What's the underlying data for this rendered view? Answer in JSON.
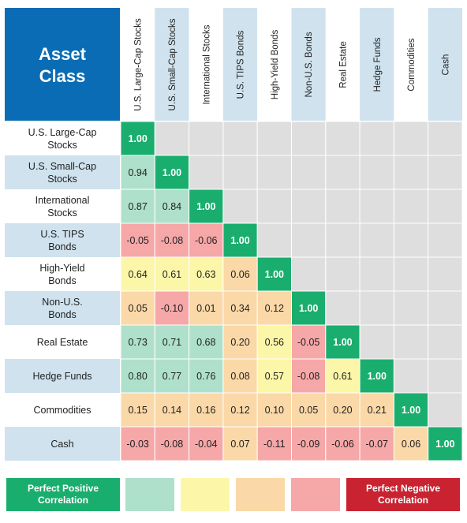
{
  "header": {
    "title_line1": "Asset",
    "title_line2": "Class"
  },
  "colors": {
    "header_blue": "#0a6cb5",
    "label_blue": "#cfe2ee",
    "diagonal": "#1aae6e",
    "empty": "#dedede",
    "bin_very_high": "#aee0cc",
    "bin_high": "#fcf6a9",
    "bin_low": "#fbd8a7",
    "bin_negative": "#f6a7a8",
    "perfect_negative": "#c92331"
  },
  "assets": [
    {
      "col": "U.S. Large-Cap Stocks",
      "row": [
        "U.S. Large-Cap",
        "Stocks"
      ]
    },
    {
      "col": "U.S. Small-Cap Stocks",
      "row": [
        "U.S. Small-Cap",
        "Stocks"
      ]
    },
    {
      "col": "International Stocks",
      "row": [
        "International",
        "Stocks"
      ]
    },
    {
      "col": "U.S. TIPS Bonds",
      "row": [
        "U.S. TIPS",
        "Bonds"
      ]
    },
    {
      "col": "High-Yield Bonds",
      "row": [
        "High-Yield",
        "Bonds"
      ]
    },
    {
      "col": "Non-U.S. Bonds",
      "row": [
        "Non-U.S.",
        "Bonds"
      ]
    },
    {
      "col": "Real Estate",
      "row": [
        "Real Estate"
      ]
    },
    {
      "col": "Hedge Funds",
      "row": [
        "Hedge Funds"
      ]
    },
    {
      "col": "Commodities",
      "row": [
        "Commodities"
      ]
    },
    {
      "col": "Cash",
      "row": [
        "Cash"
      ]
    }
  ],
  "chart_data": {
    "type": "heatmap",
    "rows": [
      "U.S. Large-Cap Stocks",
      "U.S. Small-Cap Stocks",
      "International Stocks",
      "U.S. TIPS Bonds",
      "High-Yield Bonds",
      "Non-U.S. Bonds",
      "Real Estate",
      "Hedge Funds",
      "Commodities",
      "Cash"
    ],
    "columns": [
      "U.S. Large-Cap Stocks",
      "U.S. Small-Cap Stocks",
      "International Stocks",
      "U.S. TIPS Bonds",
      "High-Yield Bonds",
      "Non-U.S. Bonds",
      "Real Estate",
      "Hedge Funds",
      "Commodities",
      "Cash"
    ],
    "values": [
      [
        "1.00"
      ],
      [
        "0.94",
        "1.00"
      ],
      [
        "0.87",
        "0.84",
        "1.00"
      ],
      [
        "-0.05",
        "-0.08",
        "-0.06",
        "1.00"
      ],
      [
        "0.64",
        "0.61",
        "0.63",
        "0.06",
        "1.00"
      ],
      [
        "0.05",
        "-0.10",
        "0.01",
        "0.34",
        "0.12",
        "1.00"
      ],
      [
        "0.73",
        "0.71",
        "0.68",
        "0.20",
        "0.56",
        "-0.05",
        "1.00"
      ],
      [
        "0.80",
        "0.77",
        "0.76",
        "0.08",
        "0.57",
        "-0.08",
        "0.61",
        "1.00"
      ],
      [
        "0.15",
        "0.14",
        "0.16",
        "0.12",
        "0.10",
        "0.05",
        "0.20",
        "0.21",
        "1.00"
      ],
      [
        "-0.03",
        "-0.08",
        "-0.04",
        "0.07",
        "-0.11",
        "-0.09",
        "-0.06",
        "-0.07",
        "0.06",
        "1.00"
      ]
    ],
    "color_bins": [
      "bin_very_high",
      "bin_high",
      "bin_low",
      "bin_negative"
    ]
  },
  "legend": {
    "positive_label": "Perfect Positive Correlation",
    "negative_label": "Perfect Negative Correlation"
  }
}
